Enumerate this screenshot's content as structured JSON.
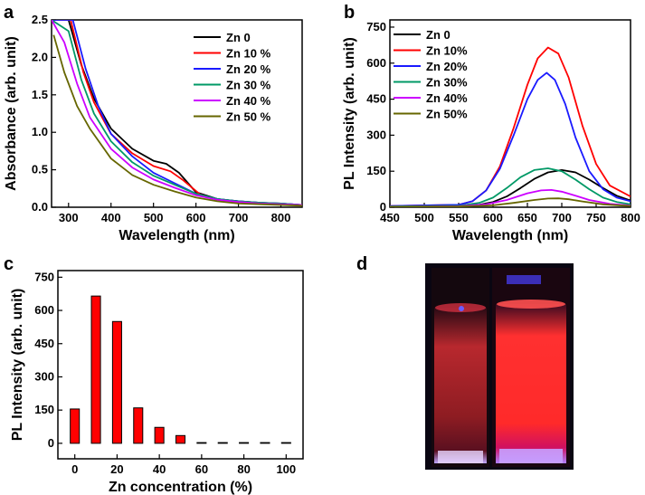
{
  "panels": {
    "a": {
      "letter": "a"
    },
    "b": {
      "letter": "b"
    },
    "c": {
      "letter": "c"
    },
    "d": {
      "letter": "d"
    }
  },
  "colors": {
    "zn0": "#000000",
    "zn10": "#ff0000",
    "zn20": "#1a1aff",
    "zn30": "#009966",
    "zn40": "#cc00ff",
    "zn50": "#666600",
    "bar": "#ff0000"
  },
  "chart_data": [
    {
      "id": "a",
      "type": "line",
      "title": "",
      "xlabel": "Wavelength (nm)",
      "ylabel": "Absorbance (arb. unit)",
      "xlim": [
        260,
        850
      ],
      "ylim": [
        0,
        2.5
      ],
      "xticks": [
        300,
        400,
        500,
        600,
        700,
        800
      ],
      "yticks": [
        0.0,
        0.5,
        1.0,
        1.5,
        2.0,
        2.5
      ],
      "ytick_labels": [
        "0.0",
        "0.5",
        "1.0",
        "1.5",
        "2.0",
        "2.5"
      ],
      "legend_position": "top-right",
      "series": [
        {
          "name": "Zn 0",
          "color_key": "zn0",
          "x": [
            260,
            300,
            330,
            360,
            400,
            450,
            500,
            530,
            560,
            600,
            650,
            700,
            750,
            800,
            850
          ],
          "y": [
            2.5,
            2.5,
            1.9,
            1.45,
            1.05,
            0.78,
            0.62,
            0.58,
            0.46,
            0.2,
            0.11,
            0.08,
            0.06,
            0.05,
            0.03
          ]
        },
        {
          "name": "Zn 10 %",
          "color_key": "zn10",
          "x": [
            260,
            305,
            335,
            360,
            400,
            450,
            500,
            540,
            570,
            610,
            650,
            700,
            750,
            800,
            850
          ],
          "y": [
            2.5,
            2.5,
            1.8,
            1.4,
            0.98,
            0.72,
            0.55,
            0.48,
            0.36,
            0.17,
            0.1,
            0.07,
            0.05,
            0.04,
            0.03
          ]
        },
        {
          "name": "Zn 20 %",
          "color_key": "zn20",
          "x": [
            260,
            310,
            340,
            370,
            400,
            450,
            500,
            550,
            600,
            650,
            700,
            750,
            800,
            850
          ],
          "y": [
            2.5,
            2.5,
            1.85,
            1.35,
            0.98,
            0.68,
            0.46,
            0.32,
            0.18,
            0.11,
            0.08,
            0.06,
            0.05,
            0.03
          ]
        },
        {
          "name": "Zn 30 %",
          "color_key": "zn30",
          "x": [
            260,
            300,
            330,
            360,
            400,
            450,
            500,
            550,
            600,
            650,
            700,
            750,
            800,
            850
          ],
          "y": [
            2.5,
            2.35,
            1.7,
            1.25,
            0.88,
            0.6,
            0.42,
            0.3,
            0.18,
            0.11,
            0.08,
            0.06,
            0.05,
            0.03
          ]
        },
        {
          "name": "Zn 40 %",
          "color_key": "zn40",
          "x": [
            260,
            290,
            320,
            350,
            400,
            450,
            500,
            550,
            600,
            650,
            700,
            750,
            800,
            850
          ],
          "y": [
            2.5,
            2.2,
            1.65,
            1.2,
            0.78,
            0.53,
            0.37,
            0.26,
            0.16,
            0.1,
            0.07,
            0.05,
            0.04,
            0.03
          ]
        },
        {
          "name": "Zn 50 %",
          "color_key": "zn50",
          "x": [
            265,
            290,
            320,
            350,
            400,
            450,
            500,
            550,
            600,
            650,
            700,
            750,
            800,
            850
          ],
          "y": [
            2.3,
            1.8,
            1.35,
            1.05,
            0.65,
            0.43,
            0.3,
            0.21,
            0.13,
            0.08,
            0.05,
            0.04,
            0.03,
            0.02
          ]
        }
      ]
    },
    {
      "id": "b",
      "type": "line",
      "title": "",
      "xlabel": "Wavelength (nm)",
      "ylabel": "PL Intensity (arb. unit)",
      "xlim": [
        450,
        800
      ],
      "ylim": [
        0,
        780
      ],
      "xticks": [
        450,
        500,
        550,
        600,
        650,
        700,
        750,
        800
      ],
      "yticks": [
        0,
        150,
        300,
        450,
        600,
        750
      ],
      "legend_position": "top-left",
      "series": [
        {
          "name": "Zn 0",
          "color_key": "zn0",
          "x": [
            450,
            550,
            580,
            600,
            620,
            640,
            660,
            680,
            700,
            720,
            740,
            760,
            780,
            800
          ],
          "y": [
            3,
            5,
            10,
            22,
            45,
            80,
            118,
            145,
            155,
            145,
            115,
            80,
            48,
            28
          ]
        },
        {
          "name": "Zn 10%",
          "color_key": "zn10",
          "x": [
            450,
            550,
            570,
            590,
            610,
            630,
            650,
            665,
            680,
            695,
            710,
            730,
            750,
            770,
            800
          ],
          "y": [
            5,
            10,
            25,
            70,
            170,
            330,
            510,
            620,
            665,
            640,
            540,
            340,
            180,
            90,
            45
          ]
        },
        {
          "name": "Zn 20%",
          "color_key": "zn20",
          "x": [
            450,
            550,
            570,
            590,
            610,
            630,
            650,
            665,
            678,
            690,
            705,
            720,
            740,
            760,
            780,
            800
          ],
          "y": [
            5,
            10,
            25,
            70,
            160,
            300,
            450,
            530,
            560,
            530,
            430,
            290,
            150,
            75,
            40,
            25
          ]
        },
        {
          "name": "Zn 30%",
          "color_key": "zn30",
          "x": [
            450,
            550,
            580,
            600,
            620,
            640,
            660,
            680,
            700,
            720,
            740,
            760,
            780,
            800
          ],
          "y": [
            3,
            6,
            18,
            40,
            80,
            125,
            155,
            162,
            150,
            115,
            75,
            40,
            22,
            12
          ]
        },
        {
          "name": "Zn 40%",
          "color_key": "zn40",
          "x": [
            450,
            550,
            590,
            620,
            650,
            670,
            685,
            700,
            720,
            740,
            770,
            800
          ],
          "y": [
            2,
            4,
            12,
            30,
            58,
            70,
            72,
            65,
            48,
            30,
            14,
            7
          ]
        },
        {
          "name": "Zn 50%",
          "color_key": "zn50",
          "x": [
            450,
            550,
            600,
            630,
            660,
            680,
            695,
            710,
            730,
            760,
            800
          ],
          "y": [
            2,
            3,
            8,
            18,
            30,
            36,
            37,
            33,
            24,
            12,
            5
          ]
        }
      ]
    },
    {
      "id": "c",
      "type": "bar",
      "title": "",
      "xlabel": "Zn concentration (%)",
      "ylabel": "PL Intensity (arb. unit)",
      "xlim": [
        -8,
        108
      ],
      "ylim": [
        -70,
        780
      ],
      "xticks": [
        0,
        20,
        40,
        60,
        80,
        100
      ],
      "yticks": [
        0,
        150,
        300,
        450,
        600,
        750
      ],
      "color_key": "bar",
      "x": [
        0,
        10,
        20,
        30,
        40,
        50,
        60,
        70,
        80,
        90,
        100
      ],
      "values": [
        155,
        665,
        550,
        160,
        72,
        35,
        0,
        0,
        0,
        0,
        0
      ]
    }
  ]
}
